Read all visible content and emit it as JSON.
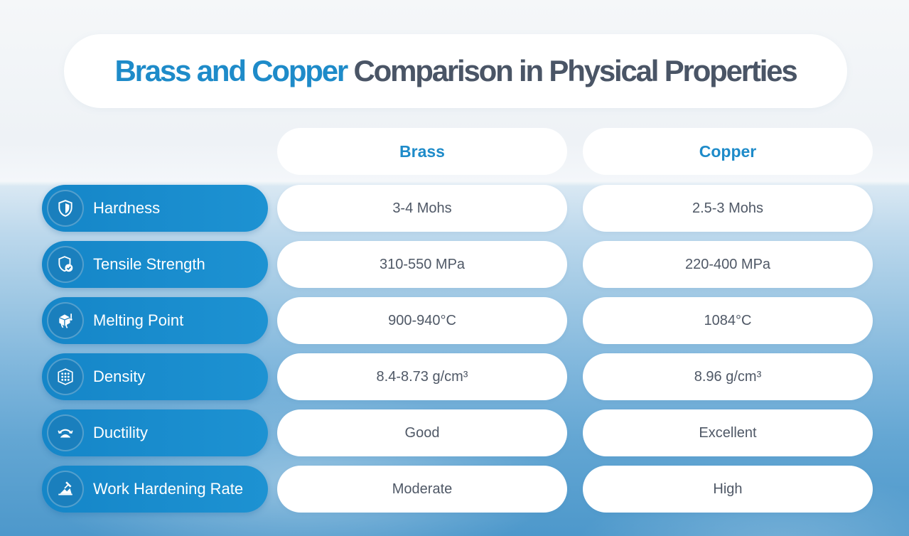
{
  "title": {
    "accent": "Brass and Copper",
    "rest": "Comparison in Physical Properties"
  },
  "columns": {
    "brass": "Brass",
    "copper": "Copper"
  },
  "rows": [
    {
      "label": "Hardness",
      "icon": "shield-icon",
      "brass": "3-4 Mohs",
      "copper": "2.5-3 Mohs"
    },
    {
      "label": "Tensile Strength",
      "icon": "shield-check-icon",
      "brass": "310-550 MPa",
      "copper": "220-400 MPa"
    },
    {
      "label": "Melting Point",
      "icon": "melting-cube-icon",
      "brass": "900-940°C",
      "copper": "1084°C"
    },
    {
      "label": "Density",
      "icon": "dotted-grid-icon",
      "brass": "8.4-8.73 g/cm³",
      "copper": "8.96 g/cm³"
    },
    {
      "label": "Ductility",
      "icon": "bending-arrows-icon",
      "brass": "Good",
      "copper": "Excellent"
    },
    {
      "label": "Work Hardening Rate",
      "icon": "hammer-strike-icon",
      "brass": "Moderate",
      "copper": "High"
    }
  ],
  "colors": {
    "accent": "#1e8bc9",
    "title_gray": "#4a5566",
    "label_pill": "#1586c8",
    "value_text": "#4f5866"
  }
}
